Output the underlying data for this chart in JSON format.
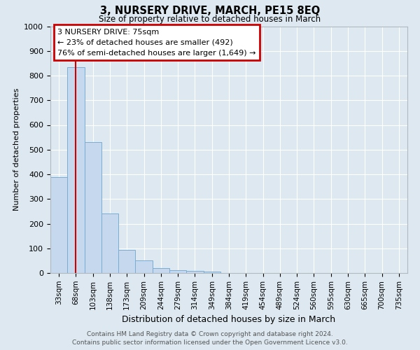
{
  "title": "3, NURSERY DRIVE, MARCH, PE15 8EQ",
  "subtitle": "Size of property relative to detached houses in March",
  "xlabel": "Distribution of detached houses by size in March",
  "ylabel": "Number of detached properties",
  "bar_labels": [
    "33sqm",
    "68sqm",
    "103sqm",
    "138sqm",
    "173sqm",
    "209sqm",
    "244sqm",
    "279sqm",
    "314sqm",
    "349sqm",
    "384sqm",
    "419sqm",
    "454sqm",
    "489sqm",
    "524sqm",
    "560sqm",
    "595sqm",
    "630sqm",
    "665sqm",
    "700sqm",
    "735sqm"
  ],
  "bar_values": [
    388,
    835,
    530,
    240,
    95,
    50,
    20,
    12,
    8,
    5,
    0,
    0,
    0,
    0,
    0,
    0,
    0,
    0,
    0,
    0,
    0
  ],
  "bar_color": "#c5d8ee",
  "bar_edge_color": "#7aadd4",
  "background_color": "#dde8f0",
  "grid_color": "#ffffff",
  "ylim": [
    0,
    1000
  ],
  "yticks": [
    0,
    100,
    200,
    300,
    400,
    500,
    600,
    700,
    800,
    900,
    1000
  ],
  "vline_x": 1.0,
  "vline_color": "#cc0000",
  "annotation_title": "3 NURSERY DRIVE: 75sqm",
  "annotation_line1": "← 23% of detached houses are smaller (492)",
  "annotation_line2": "76% of semi-detached houses are larger (1,649) →",
  "annotation_box_color": "#cc0000",
  "footer_line1": "Contains HM Land Registry data © Crown copyright and database right 2024.",
  "footer_line2": "Contains public sector information licensed under the Open Government Licence v3.0."
}
